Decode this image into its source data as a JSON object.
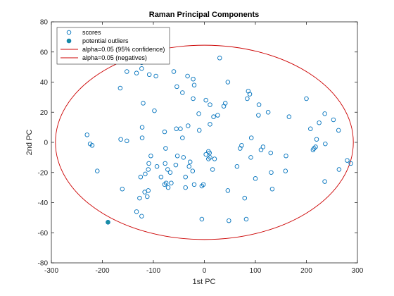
{
  "chart_data": {
    "type": "scatter",
    "title": "Raman Principal Components",
    "xlabel": "1st PC",
    "ylabel": "2nd PC",
    "xlim": [
      -300,
      300
    ],
    "ylim": [
      -80,
      80
    ],
    "xticks": [
      "-300",
      "-200",
      "-100",
      "0",
      "100",
      "200",
      "300"
    ],
    "yticks": [
      "-80",
      "-60",
      "-40",
      "-20",
      "0",
      "20",
      "40",
      "60",
      "80"
    ],
    "grid": false,
    "legend_position": "top-left",
    "legend": [
      "scores",
      "potential outliers",
      "alpha=0.05 (95% confidence)",
      "alpha=0.05 (negatives)"
    ],
    "colors": {
      "scores": "#0072BD",
      "outliers": "#0072BD",
      "ellipse": "#D95319",
      "ellipse_line": "#cc0000"
    },
    "ellipse": {
      "center": [
        0,
        0
      ],
      "x_semi_axis": 292,
      "y_semi_axis": 64.5
    },
    "series": [
      {
        "name": "scores",
        "marker": "open-circle",
        "points": [
          [
            -152,
            47
          ],
          [
            -133,
            46
          ],
          [
            -123,
            53
          ],
          [
            -123,
            49
          ],
          [
            -108,
            45
          ],
          [
            -95,
            44
          ],
          [
            -60,
            47
          ],
          [
            -54,
            37
          ],
          [
            -43,
            33
          ],
          [
            -33,
            44
          ],
          [
            -22,
            42
          ],
          [
            -20,
            38
          ],
          [
            -165,
            36
          ],
          [
            -120,
            26
          ],
          [
            -98,
            21
          ],
          [
            -22,
            29
          ],
          [
            -11,
            19
          ],
          [
            3,
            28
          ],
          [
            11,
            25
          ],
          [
            18,
            17
          ],
          [
            26,
            18
          ],
          [
            38,
            24
          ],
          [
            41,
            26
          ],
          [
            46,
            40
          ],
          [
            30,
            56
          ],
          [
            -230,
            5
          ],
          [
            -224,
            -1
          ],
          [
            -220,
            -2
          ],
          [
            -164,
            2
          ],
          [
            -152,
            1
          ],
          [
            -122,
            10
          ],
          [
            -122,
            3
          ],
          [
            -78,
            7
          ],
          [
            -55,
            9
          ],
          [
            -47,
            9
          ],
          [
            -43,
            3
          ],
          [
            -32,
            11
          ],
          [
            -10,
            8
          ],
          [
            11,
            12
          ],
          [
            86,
            34
          ],
          [
            89,
            32
          ],
          [
            84,
            29
          ],
          [
            106,
            18
          ],
          [
            107,
            25
          ],
          [
            125,
            20
          ],
          [
            166,
            17
          ],
          [
            200,
            29
          ],
          [
            236,
            19
          ],
          [
            225,
            13
          ],
          [
            253,
            15
          ],
          [
            263,
            8
          ],
          [
            208,
            9
          ],
          [
            220,
            2
          ],
          [
            218,
            -3
          ],
          [
            215,
            -4
          ],
          [
            213,
            -5
          ],
          [
            237,
            -1
          ],
          [
            280,
            -12
          ],
          [
            287,
            -14
          ],
          [
            264,
            -18
          ],
          [
            236,
            -26
          ],
          [
            160,
            -9
          ],
          [
            159,
            -19
          ],
          [
            131,
            -20
          ],
          [
            133,
            -31
          ],
          [
            115,
            -3
          ],
          [
            111,
            -5
          ],
          [
            130,
            -7
          ],
          [
            91,
            -10
          ],
          [
            92,
            3
          ],
          [
            70,
            -4
          ],
          [
            73,
            -2
          ],
          [
            64,
            -16
          ],
          [
            100,
            -24
          ],
          [
            79,
            -37
          ],
          [
            82,
            -51
          ],
          [
            48,
            -52
          ],
          [
            46,
            -32
          ],
          [
            -5,
            -51
          ],
          [
            -2,
            -28
          ],
          [
            3,
            -8
          ],
          [
            8,
            -6
          ],
          [
            10,
            -7
          ],
          [
            16,
            -18
          ],
          [
            20,
            -11
          ],
          [
            8,
            -11
          ],
          [
            11,
            -10
          ],
          [
            -23,
            -19
          ],
          [
            -28,
            -13
          ],
          [
            -30,
            -16
          ],
          [
            -37,
            -23
          ],
          [
            -37,
            -30
          ],
          [
            -41,
            -10
          ],
          [
            -53,
            -9
          ],
          [
            -56,
            -15
          ],
          [
            -76,
            -4
          ],
          [
            -77,
            -14
          ],
          [
            -72,
            -18
          ],
          [
            -67,
            -20
          ],
          [
            -65,
            -27
          ],
          [
            -71,
            -30
          ],
          [
            -78,
            -28
          ],
          [
            -85,
            -23
          ],
          [
            -93,
            -16
          ],
          [
            -105,
            -9
          ],
          [
            -109,
            -14
          ],
          [
            -110,
            -18
          ],
          [
            -116,
            -21
          ],
          [
            -110,
            -32
          ],
          [
            -117,
            -33
          ],
          [
            -112,
            -36
          ],
          [
            -125,
            -23
          ],
          [
            -127,
            -37
          ],
          [
            -123,
            -49
          ],
          [
            -161,
            -31
          ],
          [
            -210,
            -19
          ],
          [
            -133,
            -46
          ],
          [
            -75,
            -27
          ],
          [
            -20,
            -28
          ],
          [
            -5,
            -29
          ]
        ]
      },
      {
        "name": "potential outliers",
        "marker": "filled-circle",
        "points": [
          [
            -189,
            -53
          ]
        ]
      }
    ]
  }
}
